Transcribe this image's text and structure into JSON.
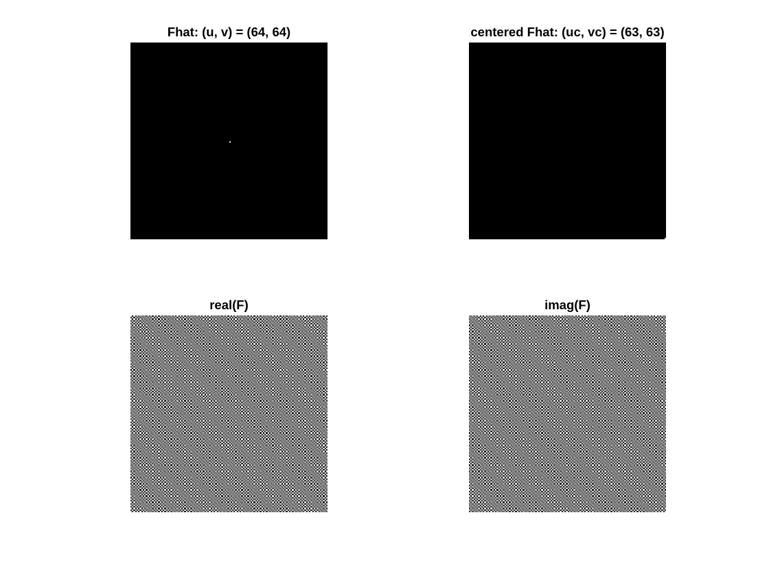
{
  "figure": {
    "background": "#ffffff",
    "subplots": [
      {
        "id": "fhat",
        "title": "Fhat: (u, v) = (64, 64)",
        "image": {
          "kind": "impulse",
          "grid": 128,
          "background": "#000000",
          "dot_color": "#ffffff",
          "dot_row": 64,
          "dot_col": 64
        }
      },
      {
        "id": "fhat-centered",
        "title": "centered Fhat: (uc, vc) = (63, 63)",
        "image": {
          "kind": "impulse",
          "grid": 128,
          "background": "#000000",
          "dot_color": "#ffffff",
          "dot_row": 127,
          "dot_col": 127
        }
      },
      {
        "id": "real",
        "title": "real(F)",
        "image": {
          "kind": "cosine-pattern",
          "grid": 128,
          "freq_u": 64,
          "freq_v": 64
        }
      },
      {
        "id": "imag",
        "title": "imag(F)",
        "image": {
          "kind": "sine-pattern",
          "grid": 128,
          "freq_u": 64,
          "freq_v": 64
        }
      }
    ]
  }
}
